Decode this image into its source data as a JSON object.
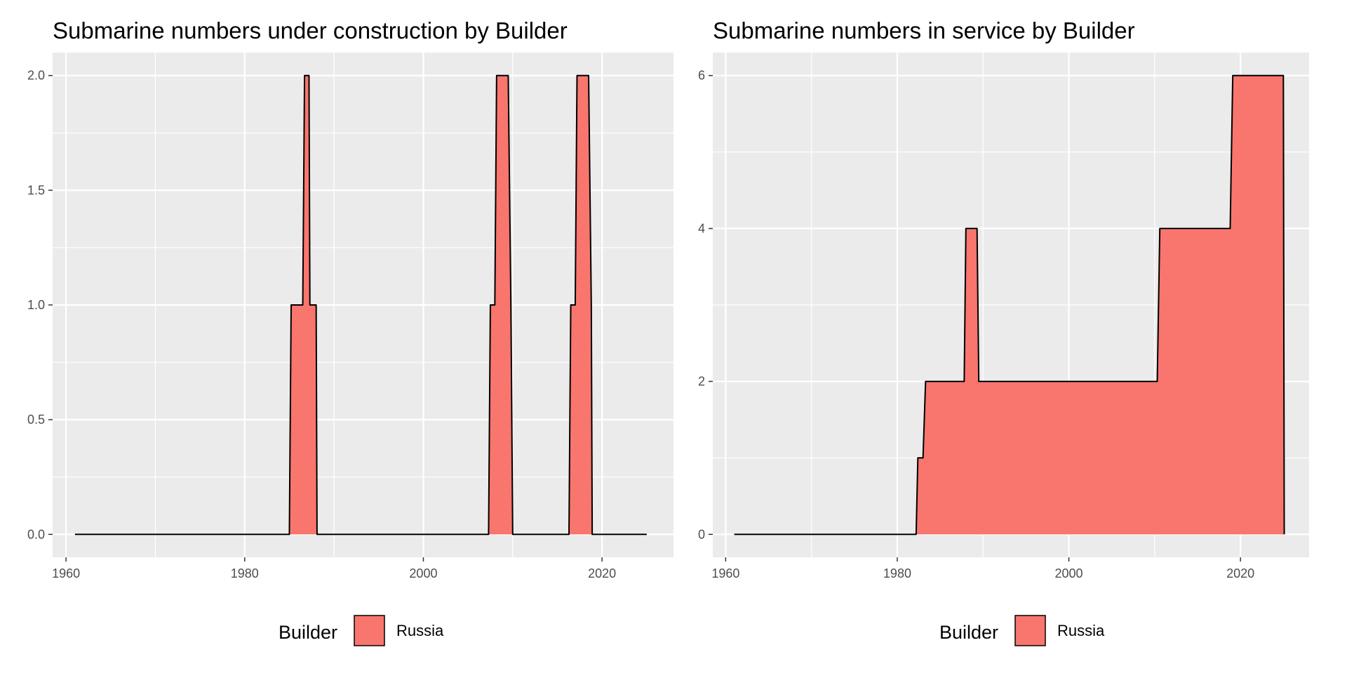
{
  "chart_data": [
    {
      "type": "area",
      "title": "Submarine numbers under construction by Builder",
      "xlabel": "",
      "ylabel": "",
      "xlim": [
        1958.5,
        2028.0
      ],
      "ylim": [
        -0.1,
        2.1
      ],
      "x_ticks": [
        1960,
        1980,
        2000,
        2020
      ],
      "x_tick_labels": [
        "1960",
        "1980",
        "2000",
        "2020"
      ],
      "y_ticks": [
        0.0,
        0.5,
        1.0,
        1.5,
        2.0
      ],
      "y_tick_labels": [
        "0.0",
        "0.5",
        "1.0",
        "1.5",
        "2.0"
      ],
      "grid": true,
      "legend": {
        "title": "Builder",
        "position": "bottom",
        "items": [
          {
            "label": "Russia",
            "color": "#F8766D"
          }
        ]
      },
      "series": [
        {
          "name": "Russia",
          "color": "#F8766D",
          "x": [
            1961,
            1985,
            1985.2,
            1986.5,
            1986.7,
            1987.2,
            1987.3,
            1988,
            1988.1,
            2007.3,
            2007.5,
            2008,
            2008.2,
            2009.5,
            2009.8,
            2010,
            2016.3,
            2016.5,
            2017,
            2017.2,
            2018.5,
            2018.8,
            2018.9,
            2025
          ],
          "y": [
            0,
            0,
            1,
            1,
            2,
            2,
            1,
            1,
            0,
            0,
            1,
            1,
            2,
            2,
            1,
            0,
            0,
            1,
            1,
            2,
            2,
            1,
            0,
            0
          ]
        }
      ]
    },
    {
      "type": "area",
      "title": "Submarine numbers in service by Builder",
      "xlabel": "",
      "ylabel": "",
      "xlim": [
        1958.5,
        2028.0
      ],
      "ylim": [
        -0.3,
        6.3
      ],
      "x_ticks": [
        1960,
        1980,
        2000,
        2020
      ],
      "x_tick_labels": [
        "1960",
        "1980",
        "2000",
        "2020"
      ],
      "y_ticks": [
        0,
        2,
        4,
        6
      ],
      "y_tick_labels": [
        "0",
        "2",
        "4",
        "6"
      ],
      "grid": true,
      "legend": {
        "title": "Builder",
        "position": "bottom",
        "items": [
          {
            "label": "Russia",
            "color": "#F8766D"
          }
        ]
      },
      "series": [
        {
          "name": "Russia",
          "color": "#F8766D",
          "x": [
            1961,
            1982.2,
            1982.4,
            1983,
            1983.3,
            1987.8,
            1988,
            1989.3,
            1989.5,
            2010.3,
            2010.6,
            2018.8,
            2019.1,
            2025,
            2025.1
          ],
          "y": [
            0,
            0,
            1,
            1,
            2,
            2,
            4,
            4,
            2,
            2,
            4,
            4,
            6,
            6,
            0
          ]
        }
      ]
    }
  ]
}
